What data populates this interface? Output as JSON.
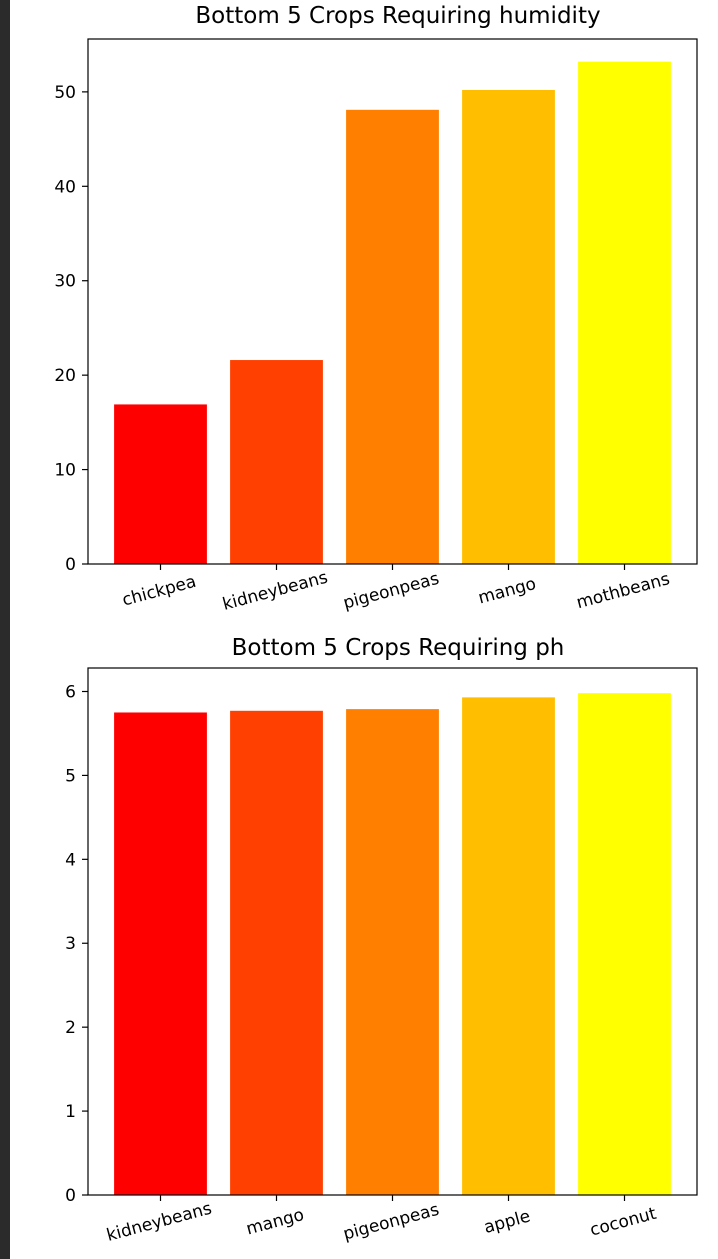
{
  "chart_data": [
    {
      "type": "bar",
      "title": "Bottom 5 Crops Requiring humidity",
      "categories": [
        "chickpea",
        "kidneybeans",
        "pigeonpeas",
        "mango",
        "mothbeans"
      ],
      "values": [
        16.9,
        21.6,
        48.1,
        50.2,
        53.2
      ],
      "colors": [
        "#ff0000",
        "#ff4000",
        "#ff8000",
        "#ffbf00",
        "#ffff00"
      ],
      "ylim": [
        0,
        55.6
      ],
      "yticks": [
        0,
        10,
        20,
        30,
        40,
        50
      ],
      "grid": false
    },
    {
      "type": "bar",
      "title": "Bottom 5 Crops Requiring ph",
      "categories": [
        "kidneybeans",
        "mango",
        "pigeonpeas",
        "apple",
        "coconut"
      ],
      "values": [
        5.75,
        5.77,
        5.79,
        5.93,
        5.98
      ],
      "colors": [
        "#ff0000",
        "#ff4000",
        "#ff8000",
        "#ffbf00",
        "#ffff00"
      ],
      "ylim": [
        0,
        6.28
      ],
      "yticks": [
        0,
        1,
        2,
        3,
        4,
        5,
        6
      ],
      "grid": false
    }
  ]
}
